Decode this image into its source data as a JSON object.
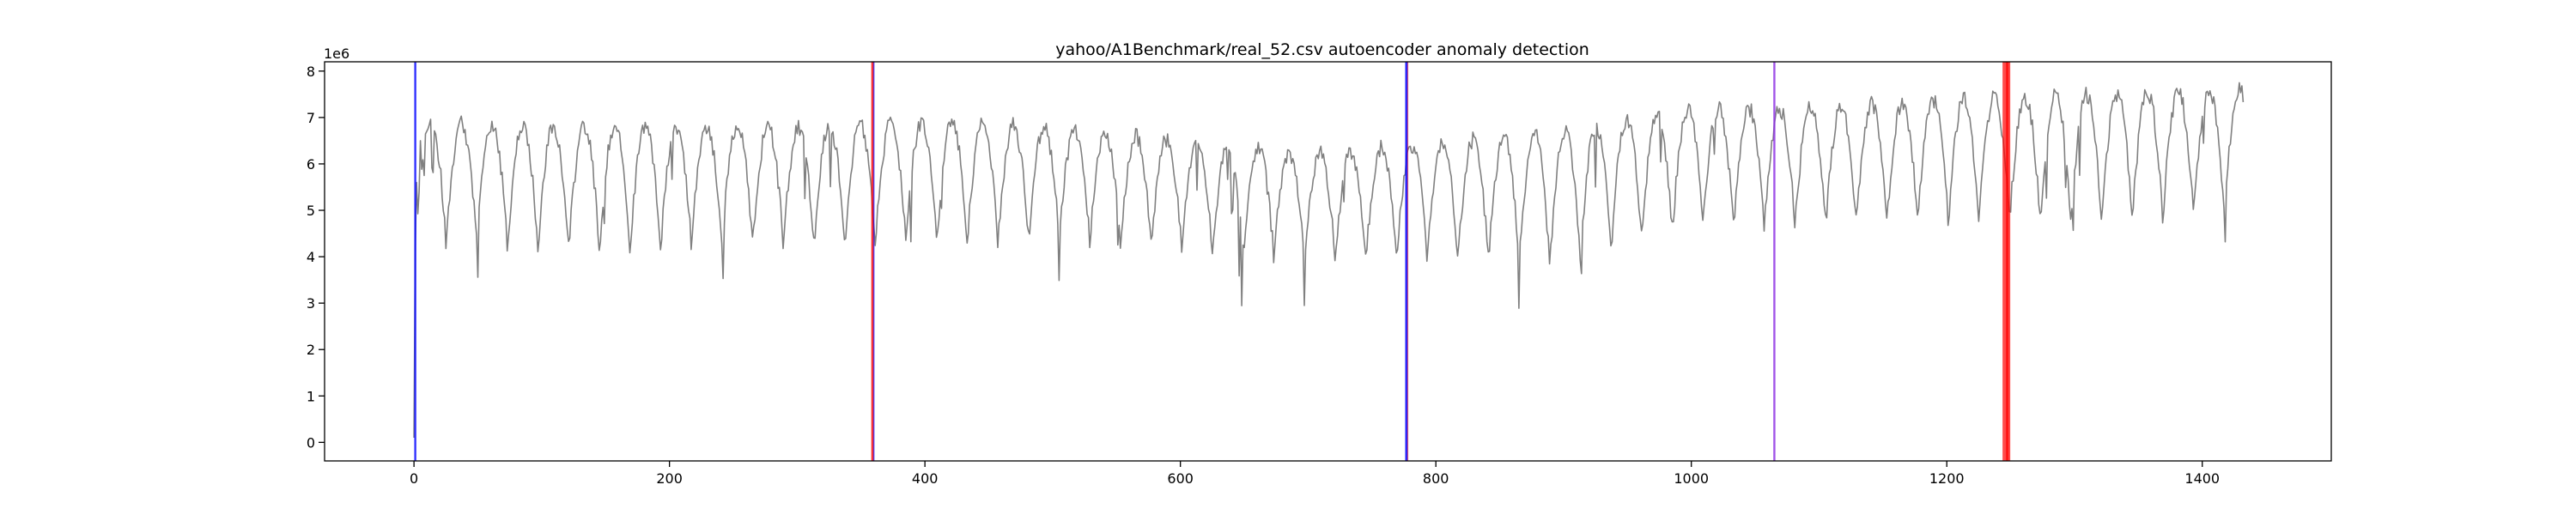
{
  "chart_data": {
    "type": "line",
    "title": "yahoo/A1Benchmark/real_52.csv autoencoder anomaly detection",
    "xlabel": "",
    "ylabel": "",
    "y_offset_text": "1e6",
    "xlim": [
      -70,
      1501
    ],
    "ylim": [
      -0.4,
      8.2
    ],
    "x_ticks": [
      0,
      200,
      400,
      600,
      800,
      1000,
      1200,
      1400
    ],
    "y_ticks": [
      0,
      1,
      2,
      3,
      4,
      5,
      6,
      7,
      8
    ],
    "grid": false,
    "legend": "none",
    "series": [
      {
        "color": "#808080",
        "style": "daily-seasonal",
        "x_start": 0,
        "x_end": 1432,
        "period": 24,
        "low_level_keypoints": [
          [
            0,
            4.3
          ],
          [
            100,
            4.1
          ],
          [
            300,
            4.2
          ],
          [
            500,
            4.3
          ],
          [
            700,
            3.9
          ],
          [
            900,
            3.8
          ],
          [
            1000,
            4.6
          ],
          [
            1200,
            4.7
          ],
          [
            1432,
            4.8
          ]
        ],
        "high_level_keypoints": [
          [
            0,
            6.9
          ],
          [
            100,
            6.8
          ],
          [
            300,
            6.8
          ],
          [
            400,
            6.9
          ],
          [
            500,
            6.8
          ],
          [
            700,
            6.2
          ],
          [
            900,
            6.7
          ],
          [
            1000,
            7.2
          ],
          [
            1100,
            7.2
          ],
          [
            1200,
            7.4
          ],
          [
            1432,
            7.6
          ]
        ],
        "start_values": [
          [
            0,
            0.1
          ],
          [
            2,
            5.6
          ],
          [
            5,
            6.5
          ]
        ]
      }
    ],
    "anomaly_markers": [
      {
        "x": 1,
        "color": "#0000ff",
        "width": 1.2,
        "opacity": 0.8
      },
      {
        "x": 359,
        "color": "#ff0000",
        "width": 1.5,
        "opacity": 0.8
      },
      {
        "x": 360,
        "color": "#0000ff",
        "width": 0.8,
        "opacity": 0.6
      },
      {
        "x": 777,
        "color": "#0000ff",
        "width": 1.5,
        "opacity": 0.85
      },
      {
        "x": 778,
        "color": "#ff0000",
        "width": 0.6,
        "opacity": 0.5
      },
      {
        "x": 1065,
        "color": "#8a2be2",
        "width": 1.2,
        "opacity": 0.8
      },
      {
        "x": 1246,
        "color": "#ff0000",
        "width": 3.5,
        "opacity": 0.7
      },
      {
        "x": 1248,
        "color": "#ff0000",
        "width": 2.5,
        "opacity": 0.7
      }
    ]
  }
}
